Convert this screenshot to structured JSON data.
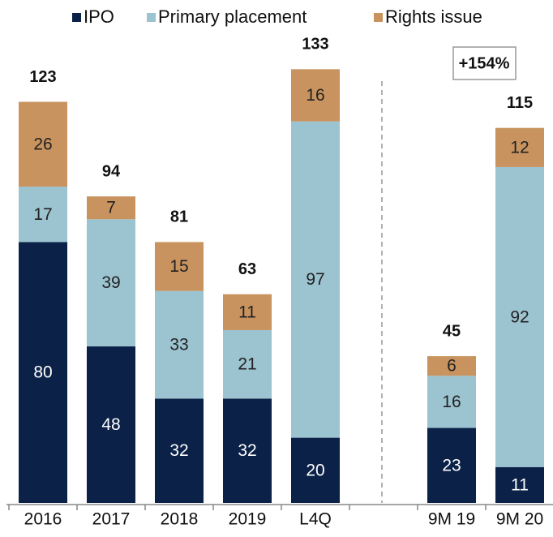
{
  "chart_data": {
    "type": "stacked_bar",
    "categories": [
      "2016",
      "2017",
      "2018",
      "2019",
      "L4Q",
      "9M 19",
      "9M 20"
    ],
    "series": [
      {
        "name": "IPO",
        "color": "#0b2148",
        "values": [
          80,
          48,
          32,
          32,
          20,
          23,
          11
        ]
      },
      {
        "name": "Primary placement",
        "color": "#9cc3d0",
        "values": [
          17,
          39,
          33,
          21,
          97,
          16,
          92
        ]
      },
      {
        "name": "Rights issue",
        "color": "#c8935f",
        "values": [
          26,
          7,
          15,
          11,
          16,
          6,
          12
        ]
      }
    ],
    "totals": [
      123,
      94,
      81,
      63,
      133,
      45,
      115
    ],
    "annotation": "+154%",
    "legend": "top"
  }
}
